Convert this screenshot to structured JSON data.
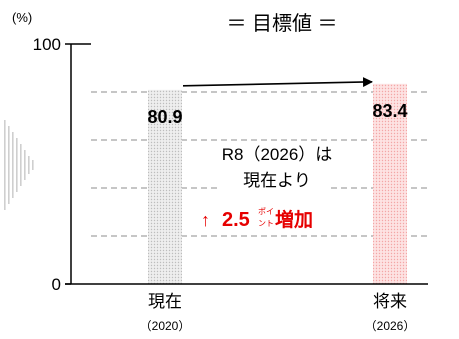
{
  "chart_data": {
    "type": "bar",
    "title": "＝ 目標値 ＝",
    "unit_label": "(%)",
    "categories": [
      {
        "label": "現在",
        "sublabel": "（2020）"
      },
      {
        "label": "将来",
        "sublabel": "（2026）"
      }
    ],
    "values": [
      80.9,
      83.4
    ],
    "value_labels": [
      "80.9",
      "83.4"
    ],
    "ylim": [
      0,
      100
    ],
    "y_ticks": [
      0,
      100
    ],
    "gridlines": [
      20,
      40,
      60,
      80
    ],
    "bar_colors": [
      "#d9d9d9",
      "#f9c7c7"
    ],
    "annotation": {
      "line1": "R8（2026）は",
      "line2": "現在より",
      "change_arrow": "↑",
      "change_value": "2.5",
      "change_unit_top": "ポイ",
      "change_unit_bottom": "ント",
      "change_suffix": "増加",
      "highlight_color": "#e60000"
    }
  }
}
